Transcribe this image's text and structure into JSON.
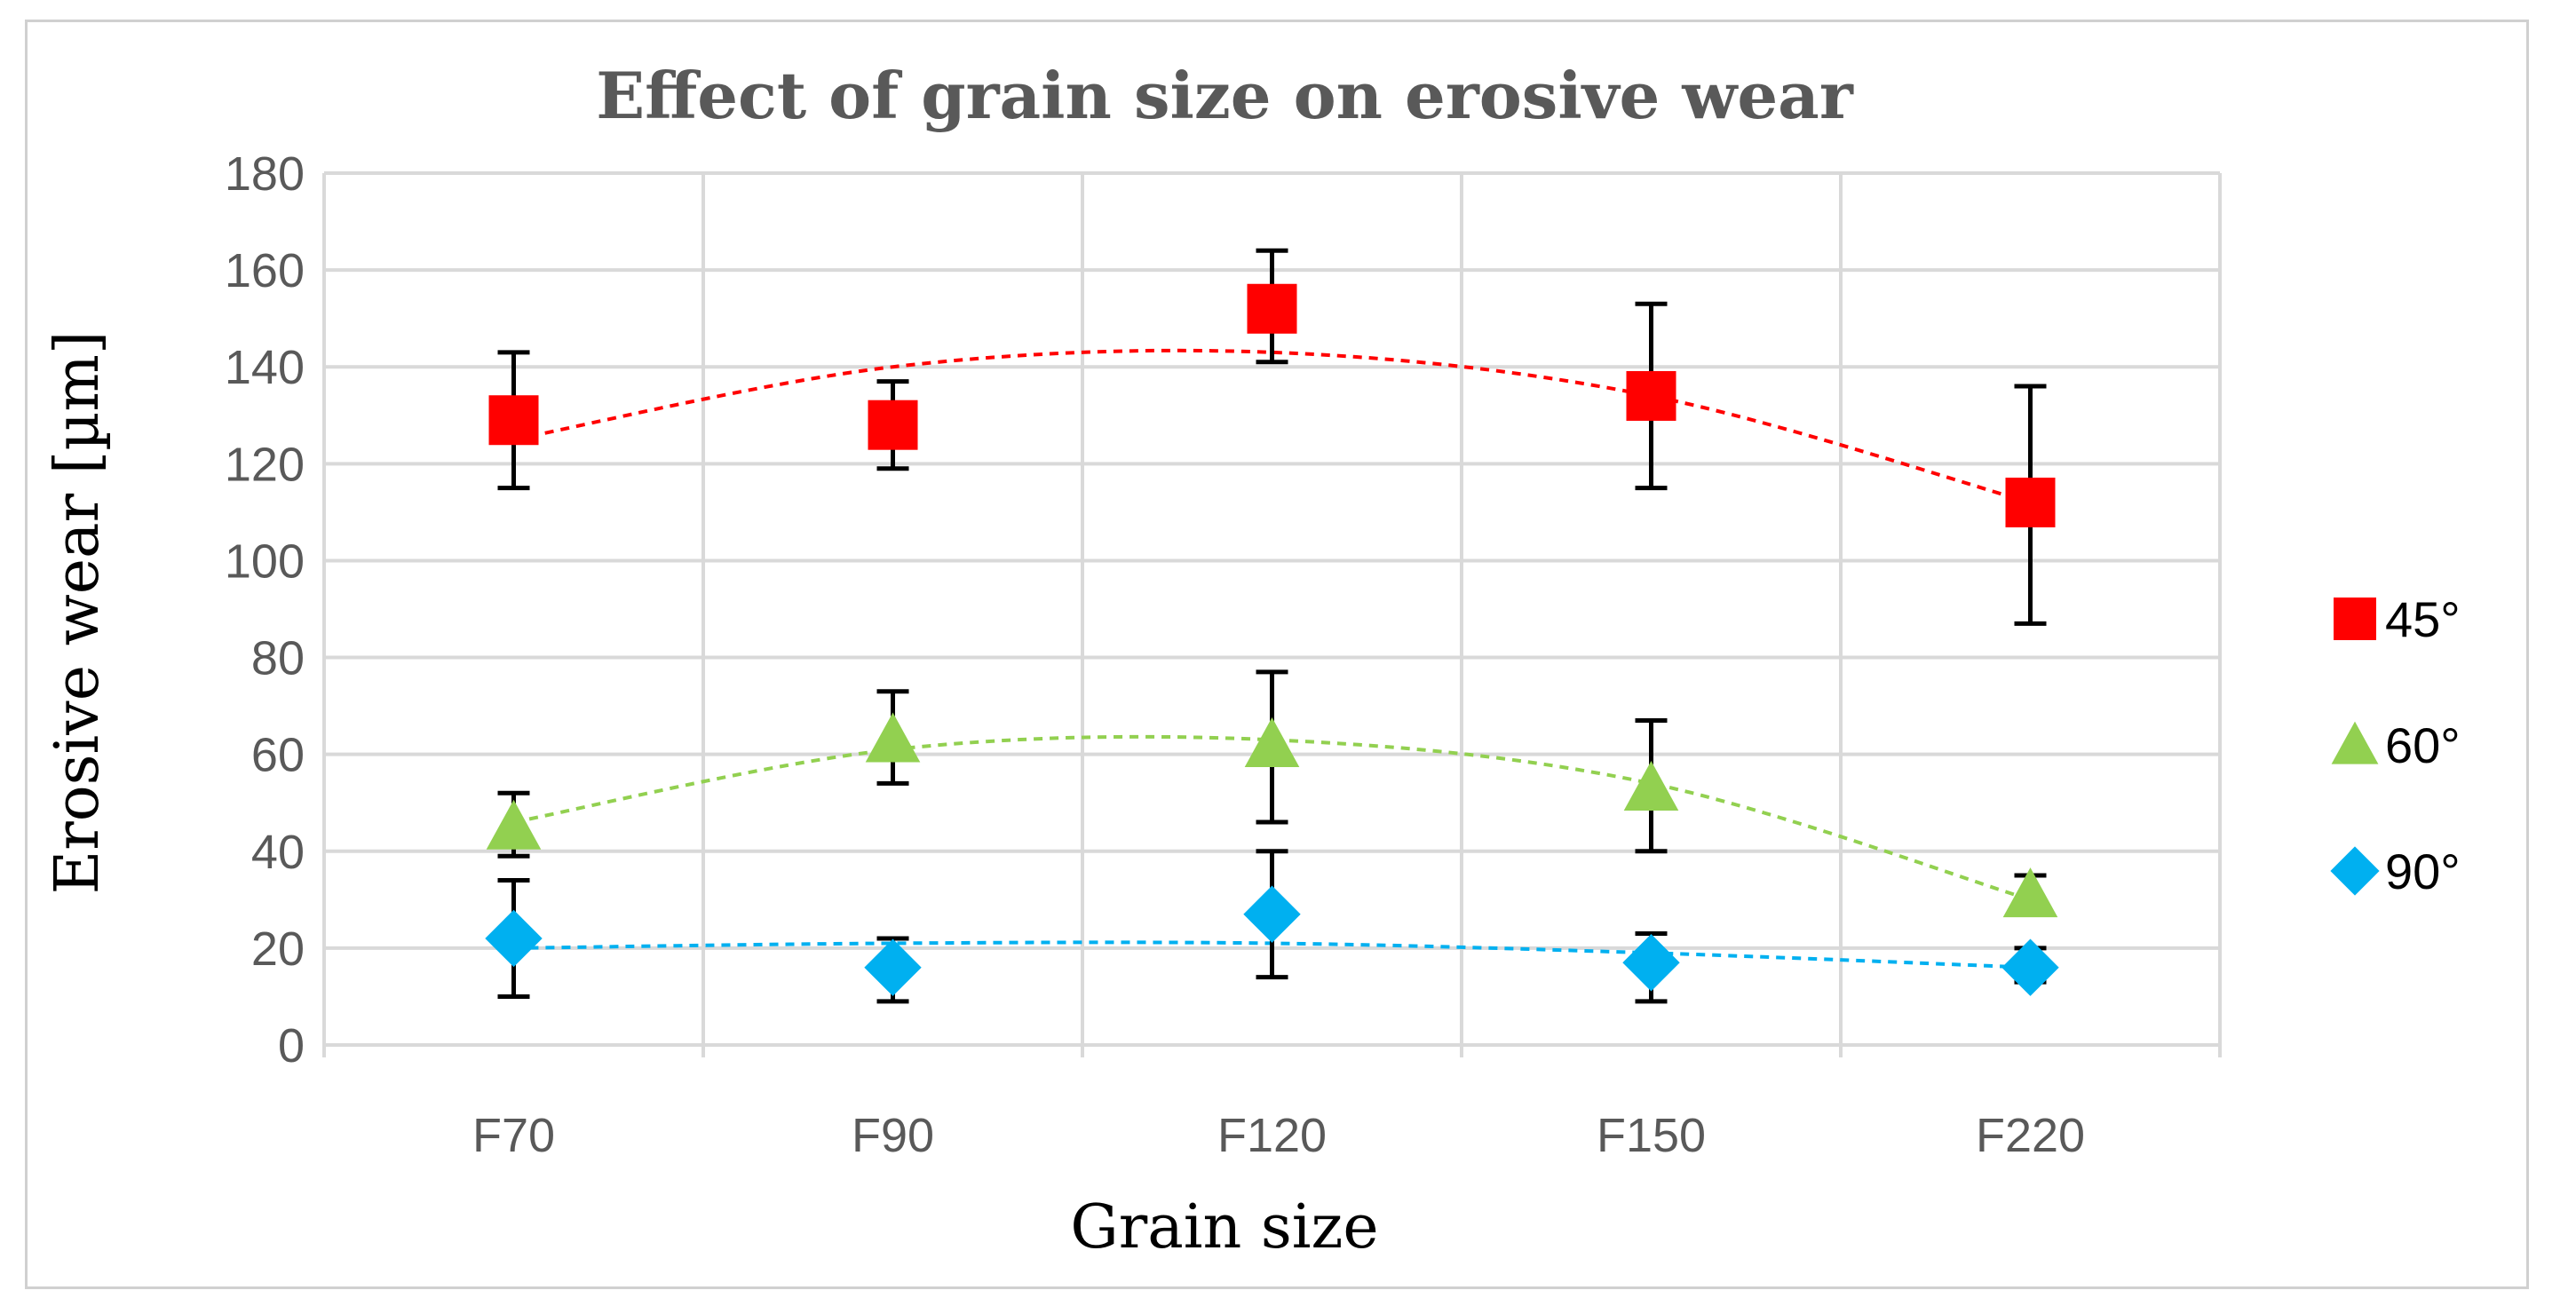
{
  "chart_data": {
    "type": "scatter",
    "title": "Effect of grain size on erosive wear",
    "xlabel": "Grain size",
    "ylabel": "Erosive wear [µm]",
    "categories": [
      "F70",
      "F90",
      "F120",
      "F150",
      "F220"
    ],
    "ylim": [
      0,
      180
    ],
    "yticks": [
      0,
      20,
      40,
      60,
      80,
      100,
      120,
      140,
      160,
      180
    ],
    "grid": true,
    "legend_position": "right",
    "series": [
      {
        "name": "45°",
        "marker": "square",
        "color": "#ff0000",
        "values": [
          129,
          128,
          152,
          134,
          112
        ],
        "error_low": [
          115,
          119,
          141,
          115,
          87
        ],
        "error_high": [
          143,
          137,
          164,
          153,
          136
        ],
        "trendline": [
          125,
          140,
          143,
          134,
          112
        ]
      },
      {
        "name": "60°",
        "marker": "triangle",
        "color": "#92d050",
        "values": [
          45,
          63,
          62,
          53,
          31
        ],
        "error_low": [
          39,
          54,
          46,
          40,
          29
        ],
        "error_high": [
          52,
          73,
          77,
          67,
          35
        ],
        "trendline": [
          46,
          61,
          63,
          54,
          30
        ]
      },
      {
        "name": "90°",
        "marker": "diamond",
        "color": "#00b0f0",
        "values": [
          22,
          16,
          27,
          17,
          16
        ],
        "error_low": [
          10,
          9,
          14,
          9,
          13
        ],
        "error_high": [
          34,
          22,
          40,
          23,
          20
        ],
        "trendline": [
          20,
          21,
          21,
          19,
          16
        ]
      }
    ]
  }
}
